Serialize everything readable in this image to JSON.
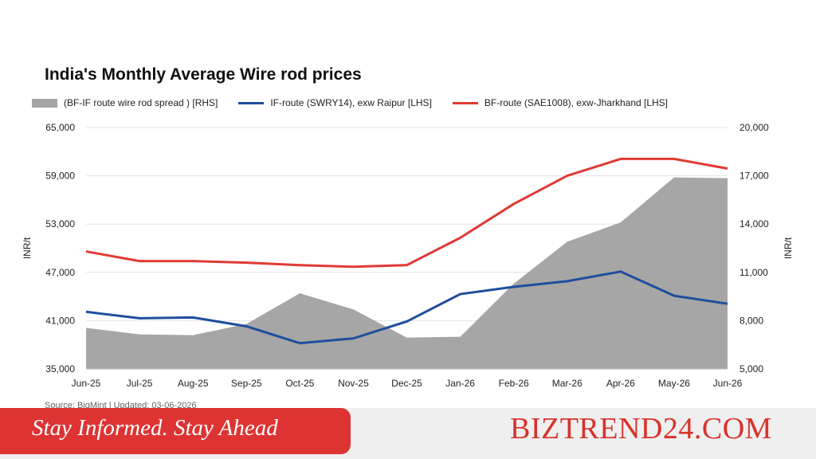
{
  "chart_data": {
    "type": "line",
    "title": "India's Monthly Average Wire rod prices",
    "categories": [
      "Jun-25",
      "Jul-25",
      "Aug-25",
      "Sep-25",
      "Oct-25",
      "Nov-25",
      "Dec-25",
      "Jan-26",
      "Feb-26",
      "Mar-26",
      "Apr-26",
      "May-26",
      "Jun-26"
    ],
    "series": [
      {
        "name": "(BF-IF route wire rod spread ) [RHS]",
        "type": "area",
        "axis": "right",
        "color": "#a6a6a6",
        "values": [
          7550,
          7150,
          7100,
          7800,
          9700,
          8700,
          6950,
          7000,
          10300,
          12900,
          14100,
          16900,
          16850
        ]
      },
      {
        "name": "IF-route (SWRY14), exw Raipur [LHS]",
        "type": "line",
        "axis": "left",
        "color": "#1f4e9e",
        "values": [
          42100,
          41300,
          41400,
          40300,
          38200,
          38800,
          40900,
          44300,
          45200,
          45900,
          47100,
          44100,
          43100
        ]
      },
      {
        "name": "BF-route (SAE1008), exw-Jharkhand [LHS]",
        "type": "line",
        "axis": "right-legend-order",
        "color": "#e03a35",
        "values": [
          49600,
          48400,
          48400,
          48200,
          47900,
          47700,
          47900,
          51300,
          55500,
          59000,
          61100,
          61100,
          59900
        ]
      }
    ],
    "left_axis": {
      "label": "INR/t",
      "ylim": [
        35000,
        65000
      ],
      "ticks": [
        "35,000",
        "41,000",
        "47,000",
        "53,000",
        "59,000",
        "65,000"
      ]
    },
    "right_axis": {
      "label": "INR/t",
      "ylim": [
        5000,
        20000
      ],
      "ticks": [
        "5,000",
        "8,000",
        "11,000",
        "14,000",
        "17,000",
        "20,000"
      ]
    },
    "legend_position": "top",
    "grid": true
  },
  "source_text": "Source: BigMint | Updated: 03-06-2026",
  "banner": {
    "tagline": "Stay Informed. Stay Ahead",
    "brand": "BIZTREND24.COM"
  }
}
